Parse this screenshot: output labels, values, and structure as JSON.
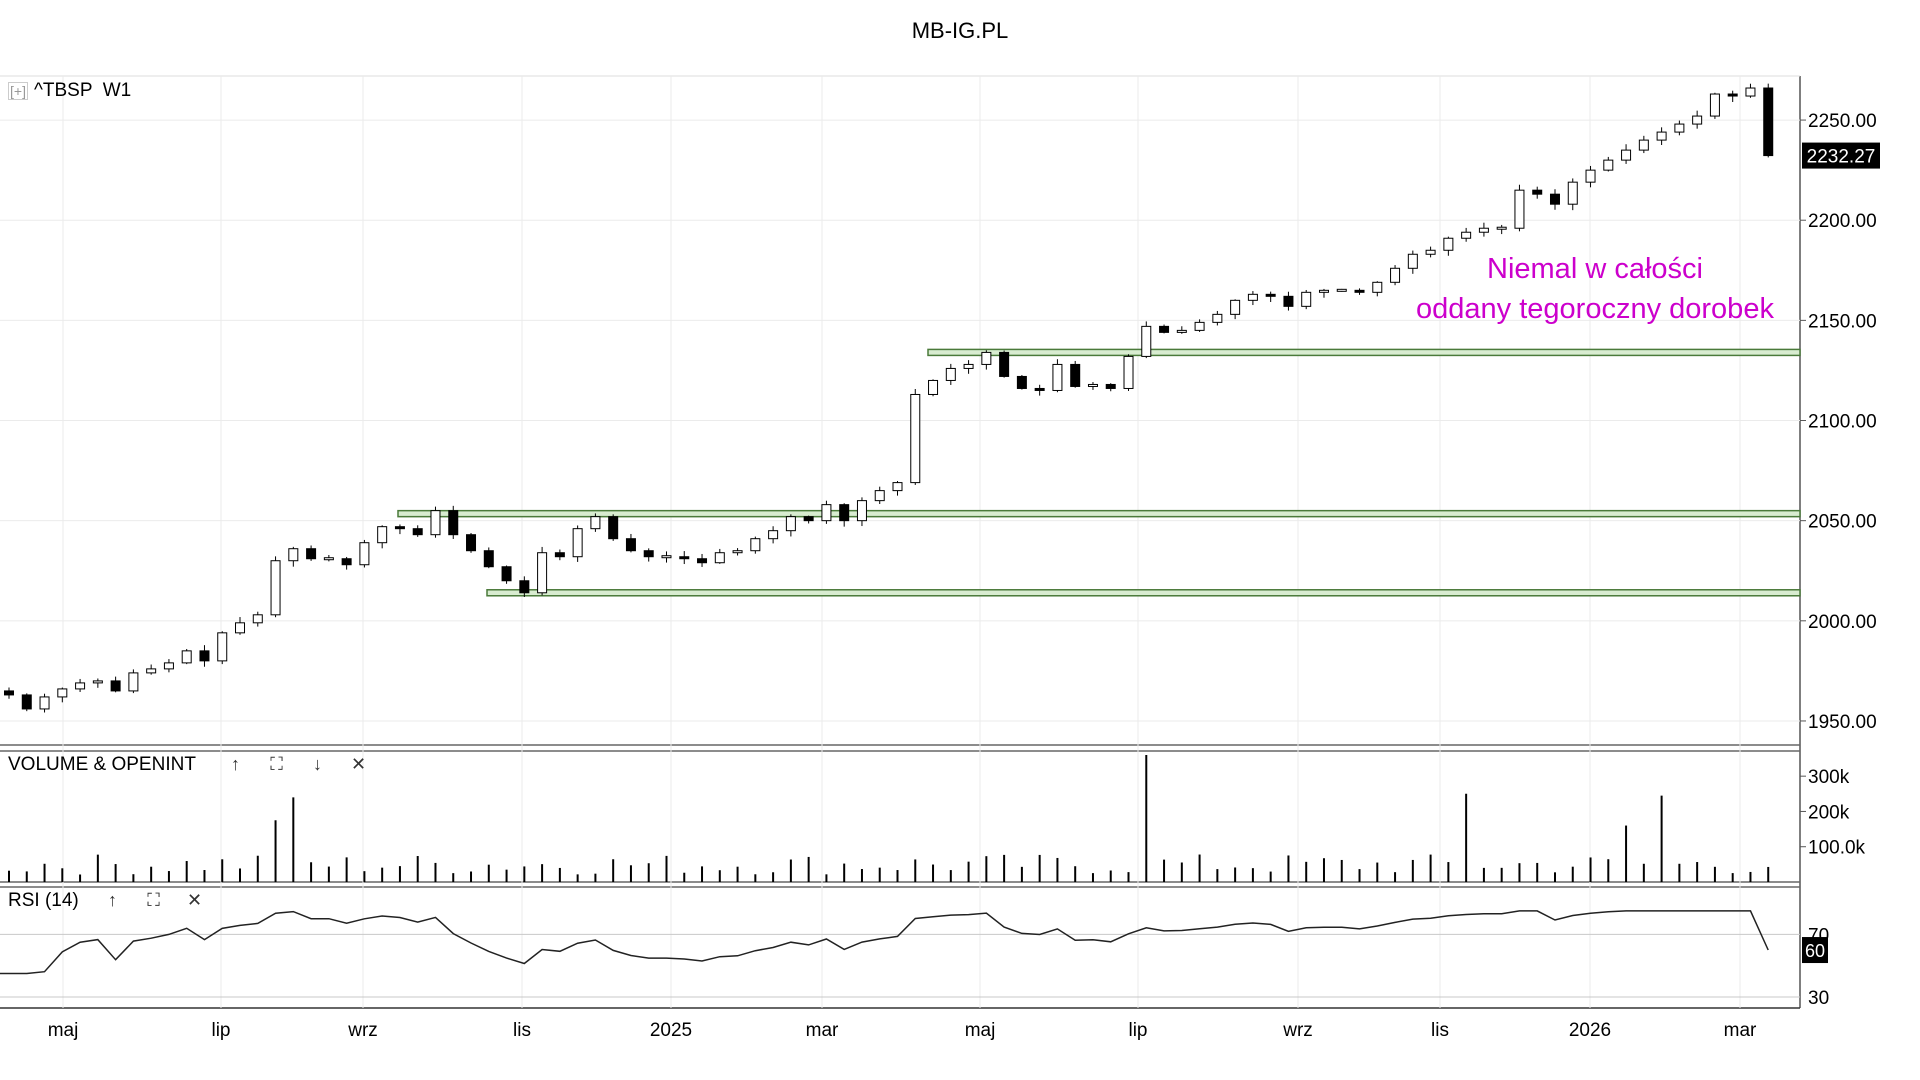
{
  "header": {
    "title": "MB-IG.PL"
  },
  "price_panel": {
    "symbol": "^TBSP  W1",
    "expand_icon": "[+]",
    "last_price_label": "2232.27"
  },
  "volume_panel": {
    "label": "VOLUME & OPENINT",
    "icons": [
      "↑",
      "⛶",
      "↓",
      "✕"
    ]
  },
  "rsi_panel": {
    "label": "RSI (14)",
    "icons": [
      "↑",
      "⛶",
      "✕"
    ],
    "last_value_label": "60"
  },
  "annotation": {
    "line1": "Niemal w całości",
    "line2": "oddany tegoroczny dorobek",
    "color": "#cc00cc"
  },
  "colors": {
    "up_body": "#ffffff",
    "down_body": "#000000",
    "level_line": "#4a7a3a",
    "level_fill": "#d8ecd0",
    "grid": "#ebebeb"
  },
  "chart_data": [
    {
      "type": "candlestick",
      "title": "MB-IG.PL",
      "series_name": "^TBSP W1",
      "x_ticks": [
        "maj",
        "lip",
        "wrz",
        "lis",
        "2025",
        "mar",
        "maj",
        "lip",
        "wrz",
        "lis",
        "2026",
        "mar"
      ],
      "y_ticks": [
        1950,
        2000,
        2050,
        2100,
        2150,
        2200,
        2250
      ],
      "ylim": [
        1938,
        2272
      ],
      "last_value": 2232.27,
      "support_resistance_levels": [
        2014,
        2053.5,
        2134
      ],
      "grid": true,
      "close": [
        1963,
        1956,
        1962,
        1966,
        1969,
        1970,
        1965,
        1974,
        1976,
        1979,
        1985,
        1980,
        1994,
        1999,
        2003,
        2030,
        2036,
        2031,
        2031,
        2028,
        2039,
        2047,
        2046,
        2043,
        2055,
        2043,
        2035,
        2027,
        2020,
        2014,
        2034,
        2032,
        2046,
        2052,
        2041,
        2035,
        2032,
        2032,
        2031,
        2029,
        2034,
        2035,
        2041,
        2045,
        2052,
        2050,
        2058,
        2050,
        2060,
        2065,
        2069,
        2113,
        2120,
        2126,
        2128,
        2134,
        2122,
        2116,
        2115,
        2128,
        2117,
        2118,
        2116,
        2132,
        2147,
        2144,
        2145,
        2149,
        2153,
        2160,
        2163,
        2162,
        2157,
        2164,
        2165,
        2165,
        2164,
        2169,
        2176,
        2183,
        2185,
        2191,
        2194,
        2196,
        2196,
        2215,
        2213,
        2208,
        2219,
        2225,
        2230,
        2235,
        2240,
        2244,
        2248,
        2252,
        2263,
        2262,
        2266,
        2232.27
      ],
      "volume_ylim": [
        0,
        360000
      ],
      "volume_ticks": [
        "100.0k",
        "200k",
        "300k"
      ],
      "rsi_period": 14,
      "rsi_ticks": [
        30,
        70
      ],
      "rsi_last": 60
    }
  ]
}
